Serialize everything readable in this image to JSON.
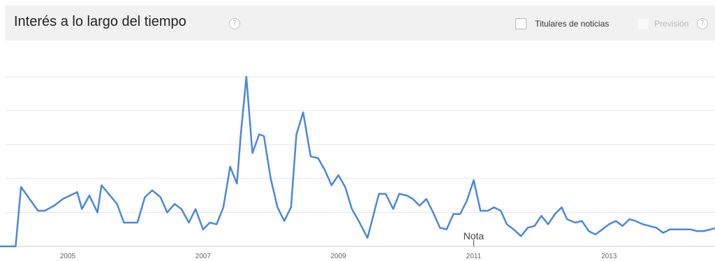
{
  "header": {
    "title": "Interés a lo largo del tiempo",
    "help": "?",
    "news_label": "Titulares de noticias",
    "forecast_label": "Previsión",
    "forecast_help": "?"
  },
  "colors": {
    "line": "#4a88d9",
    "grid": "#e6e6e6",
    "axis": "#cccccc",
    "header_bg": "#f1f1f1"
  },
  "chart_data": {
    "type": "line",
    "title": "Interés a lo largo del tiempo",
    "xlabel": "",
    "ylabel": "",
    "x_ticks": [
      "2005",
      "2007",
      "2009",
      "2011",
      "2013"
    ],
    "xlim": [
      2004.0,
      2014.63
    ],
    "ylim": [
      0,
      100
    ],
    "grid": true,
    "y_tick_values": [
      0,
      20,
      40,
      60,
      80,
      100
    ],
    "annotations": [
      {
        "text": "Nota",
        "x": 2011.0
      }
    ],
    "series": [
      {
        "values": [
          [
            2004.0,
            0
          ],
          [
            2004.23,
            0
          ],
          [
            2004.31,
            35
          ],
          [
            2004.56,
            21
          ],
          [
            2004.66,
            21
          ],
          [
            2004.8,
            24
          ],
          [
            2004.93,
            28
          ],
          [
            2005.14,
            32
          ],
          [
            2005.21,
            22
          ],
          [
            2005.32,
            30
          ],
          [
            2005.44,
            20
          ],
          [
            2005.5,
            36
          ],
          [
            2005.73,
            25
          ],
          [
            2005.83,
            14
          ],
          [
            2006.03,
            14
          ],
          [
            2006.14,
            29
          ],
          [
            2006.25,
            33
          ],
          [
            2006.37,
            29
          ],
          [
            2006.47,
            20
          ],
          [
            2006.58,
            25
          ],
          [
            2006.68,
            22
          ],
          [
            2006.79,
            14
          ],
          [
            2006.89,
            22
          ],
          [
            2007.0,
            10
          ],
          [
            2007.1,
            14
          ],
          [
            2007.2,
            13
          ],
          [
            2007.3,
            23
          ],
          [
            2007.4,
            47
          ],
          [
            2007.5,
            37
          ],
          [
            2007.56,
            67
          ],
          [
            2007.64,
            100
          ],
          [
            2007.73,
            55
          ],
          [
            2007.83,
            66
          ],
          [
            2007.9,
            65
          ],
          [
            2008.0,
            40
          ],
          [
            2008.1,
            23
          ],
          [
            2008.2,
            15
          ],
          [
            2008.3,
            23
          ],
          [
            2008.38,
            66
          ],
          [
            2008.48,
            79
          ],
          [
            2008.59,
            53
          ],
          [
            2008.7,
            52
          ],
          [
            2008.8,
            45
          ],
          [
            2008.9,
            36
          ],
          [
            2009.0,
            42
          ],
          [
            2009.1,
            35
          ],
          [
            2009.2,
            22
          ],
          [
            2009.3,
            15
          ],
          [
            2009.43,
            5
          ],
          [
            2009.6,
            31
          ],
          [
            2009.7,
            31
          ],
          [
            2009.81,
            22
          ],
          [
            2009.9,
            31
          ],
          [
            2010.01,
            30
          ],
          [
            2010.1,
            28
          ],
          [
            2010.2,
            24
          ],
          [
            2010.3,
            28
          ],
          [
            2010.4,
            20
          ],
          [
            2010.5,
            11
          ],
          [
            2010.6,
            10
          ],
          [
            2010.7,
            19
          ],
          [
            2010.8,
            19
          ],
          [
            2010.9,
            27
          ],
          [
            2011.0,
            39
          ],
          [
            2011.1,
            21
          ],
          [
            2011.21,
            21
          ],
          [
            2011.3,
            23
          ],
          [
            2011.4,
            21
          ],
          [
            2011.49,
            13
          ],
          [
            2011.59,
            10
          ],
          [
            2011.7,
            6
          ],
          [
            2011.8,
            11
          ],
          [
            2011.9,
            12
          ],
          [
            2012.0,
            18
          ],
          [
            2012.1,
            13
          ],
          [
            2012.2,
            19
          ],
          [
            2012.3,
            23
          ],
          [
            2012.38,
            16
          ],
          [
            2012.5,
            14
          ],
          [
            2012.6,
            15
          ],
          [
            2012.7,
            9
          ],
          [
            2012.8,
            7
          ],
          [
            2012.9,
            10
          ],
          [
            2013.0,
            13
          ],
          [
            2013.1,
            15
          ],
          [
            2013.2,
            12
          ],
          [
            2013.3,
            16
          ],
          [
            2013.39,
            15
          ],
          [
            2013.5,
            13
          ],
          [
            2013.6,
            12
          ],
          [
            2013.7,
            11
          ],
          [
            2013.8,
            8
          ],
          [
            2013.9,
            10
          ],
          [
            2014.0,
            10
          ],
          [
            2014.1,
            10
          ],
          [
            2014.2,
            10
          ],
          [
            2014.3,
            9
          ],
          [
            2014.4,
            9
          ],
          [
            2014.5,
            10
          ],
          [
            2014.6,
            11
          ],
          [
            2014.63,
            8
          ]
        ]
      }
    ]
  }
}
